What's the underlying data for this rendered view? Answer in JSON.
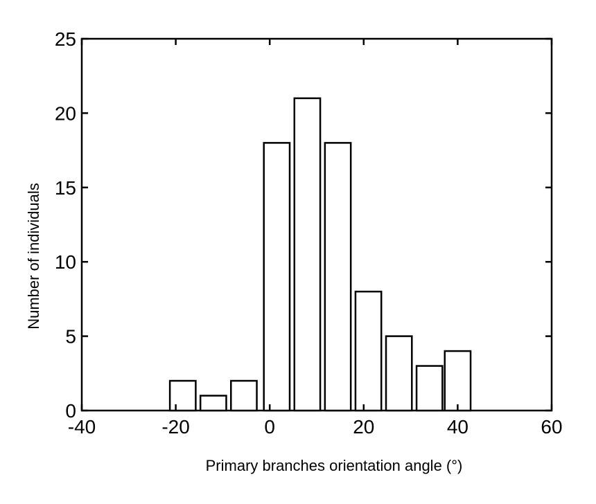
{
  "chart_data": {
    "type": "bar",
    "title": "",
    "xlabel": "Primary branches orientation angle (°)",
    "ylabel": "Number of individuals",
    "xlim": [
      -40,
      60
    ],
    "ylim": [
      0,
      25
    ],
    "xticks": [
      "-40",
      "-20",
      "0",
      "20",
      "40",
      "60"
    ],
    "yticks": [
      "0",
      "5",
      "10",
      "15",
      "20",
      "25"
    ],
    "bar_width": 5.5,
    "x": [
      -18.5,
      -12,
      -5.5,
      1.5,
      8,
      14.5,
      21,
      27.5,
      34,
      40
    ],
    "values": [
      2,
      1,
      2,
      18,
      21,
      18,
      8,
      5,
      3,
      4
    ],
    "bar_fill": "#ffffff",
    "bar_stroke": "#000000",
    "grid": false,
    "legend": "none"
  }
}
